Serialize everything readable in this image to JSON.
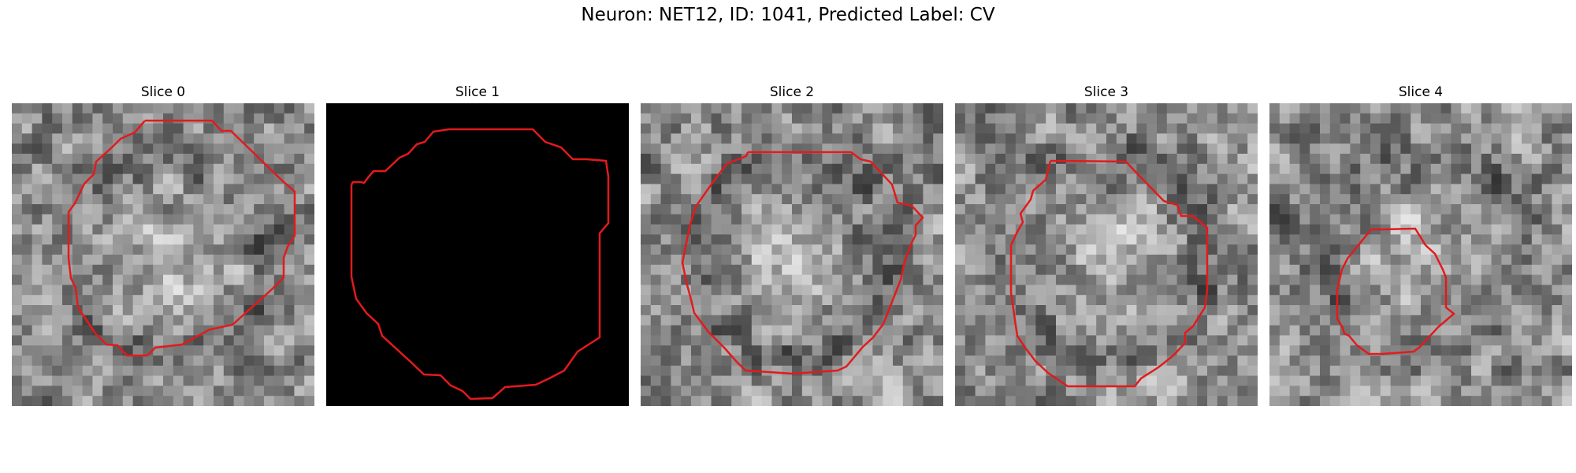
{
  "figure": {
    "title": "Neuron: NET12, ID: 1041, Predicted Label: CV",
    "contour_color": "#e31a1c"
  },
  "panels": [
    {
      "title": "Slice 0",
      "background": "grayscale-noise",
      "seed": 11
    },
    {
      "title": "Slice 1",
      "background": "black",
      "seed": 0
    },
    {
      "title": "Slice 2",
      "background": "grayscale-noise",
      "seed": 23
    },
    {
      "title": "Slice 3",
      "background": "grayscale-noise",
      "seed": 37
    },
    {
      "title": "Slice 4",
      "background": "grayscale-noise",
      "seed": 51
    }
  ]
}
